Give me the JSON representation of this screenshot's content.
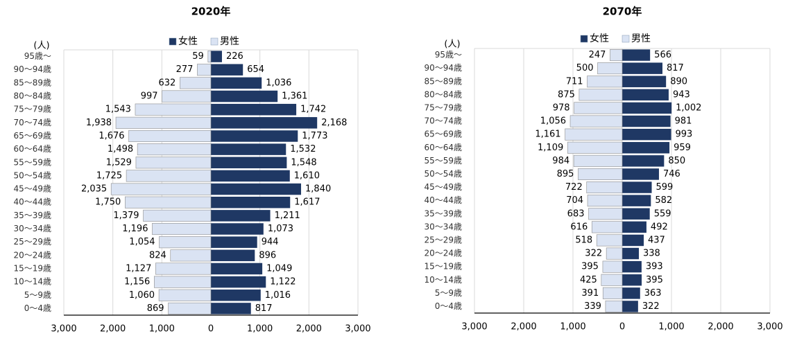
{
  "chart_data": [
    {
      "type": "pyramid",
      "title": "2020年",
      "ylabel": "(人)",
      "categories": [
        "95歳～",
        "90～94歳",
        "85～89歳",
        "80～84歳",
        "75～79歳",
        "70～74歳",
        "65～69歳",
        "60～64歳",
        "55～59歳",
        "50～54歳",
        "45～49歳",
        "40～44歳",
        "35～39歳",
        "30～34歳",
        "25～29歳",
        "20～24歳",
        "15～19歳",
        "10～14歳",
        "5～9歳",
        "0～4歳"
      ],
      "series": [
        {
          "name": "女性",
          "color": "#1f3864",
          "values": [
            226,
            654,
            1036,
            1361,
            1742,
            2168,
            1773,
            1532,
            1548,
            1610,
            1840,
            1617,
            1211,
            1073,
            944,
            896,
            1049,
            1122,
            1016,
            817
          ],
          "value_labels": [
            "226",
            "654",
            "1,036",
            "1,361",
            "1,742",
            "2,168",
            "1,773",
            "1,532",
            "1,548",
            "1,610",
            "1,840",
            "1,617",
            "1,211",
            "1,073",
            "944",
            "896",
            "1,049",
            "1,122",
            "1,016",
            "817"
          ]
        },
        {
          "name": "男性",
          "color": "#dae3f3",
          "values": [
            59,
            277,
            632,
            997,
            1543,
            1938,
            1676,
            1498,
            1529,
            1725,
            2035,
            1750,
            1379,
            1196,
            1054,
            824,
            1127,
            1156,
            1060,
            869
          ],
          "value_labels": [
            "59",
            "277",
            "632",
            "997",
            "1,543",
            "1,938",
            "1,676",
            "1,498",
            "1,529",
            "1,725",
            "2,035",
            "1,750",
            "1,379",
            "1,196",
            "1,054",
            "824",
            "1,127",
            "1,156",
            "1,060",
            "869"
          ]
        }
      ],
      "xlim": [
        -3000,
        3000
      ],
      "xticks": [
        {
          "value": -3000,
          "label": "3,000"
        },
        {
          "value": -2000,
          "label": "2,000"
        },
        {
          "value": -1000,
          "label": "1,000"
        },
        0,
        {
          "value": 1000,
          "label": "1,000"
        },
        {
          "value": 2000,
          "label": "2,000"
        },
        {
          "value": 3000,
          "label": "3,000"
        }
      ],
      "grid": true,
      "legend": "top"
    },
    {
      "type": "pyramid",
      "title": "2070年",
      "ylabel": "(人)",
      "categories": [
        "95歳～",
        "90～94歳",
        "85～89歳",
        "80～84歳",
        "75～79歳",
        "70～74歳",
        "65～69歳",
        "60～64歳",
        "55～59歳",
        "50～54歳",
        "45～49歳",
        "40～44歳",
        "35～39歳",
        "30～34歳",
        "25～29歳",
        "20～24歳",
        "15～19歳",
        "10～14歳",
        "5～9歳",
        "0～4歳"
      ],
      "series": [
        {
          "name": "女性",
          "color": "#1f3864",
          "values": [
            566,
            817,
            890,
            943,
            1002,
            981,
            993,
            959,
            850,
            746,
            599,
            582,
            559,
            492,
            437,
            338,
            393,
            395,
            363,
            322
          ],
          "value_labels": [
            "566",
            "817",
            "890",
            "943",
            "1,002",
            "981",
            "993",
            "959",
            "850",
            "746",
            "599",
            "582",
            "559",
            "492",
            "437",
            "338",
            "393",
            "395",
            "363",
            "322"
          ]
        },
        {
          "name": "男性",
          "color": "#dae3f3",
          "values": [
            247,
            500,
            711,
            875,
            978,
            1056,
            1161,
            1109,
            984,
            895,
            722,
            704,
            683,
            616,
            518,
            322,
            395,
            425,
            391,
            339
          ],
          "value_labels": [
            "247",
            "500",
            "711",
            "875",
            "978",
            "1,056",
            "1,161",
            "1,109",
            "984",
            "895",
            "722",
            "704",
            "683",
            "616",
            "518",
            "322",
            "395",
            "425",
            "391",
            "339"
          ]
        }
      ],
      "xlim": [
        -3000,
        3000
      ],
      "xticks": [
        {
          "value": -3000,
          "label": "3,000"
        },
        {
          "value": -2000,
          "label": "2,000"
        },
        {
          "value": -1000,
          "label": "1,000"
        },
        0,
        {
          "value": 1000,
          "label": "1,000"
        },
        {
          "value": 2000,
          "label": "2,000"
        },
        {
          "value": 3000,
          "label": "3,000"
        }
      ],
      "grid": true,
      "legend": "top"
    }
  ]
}
